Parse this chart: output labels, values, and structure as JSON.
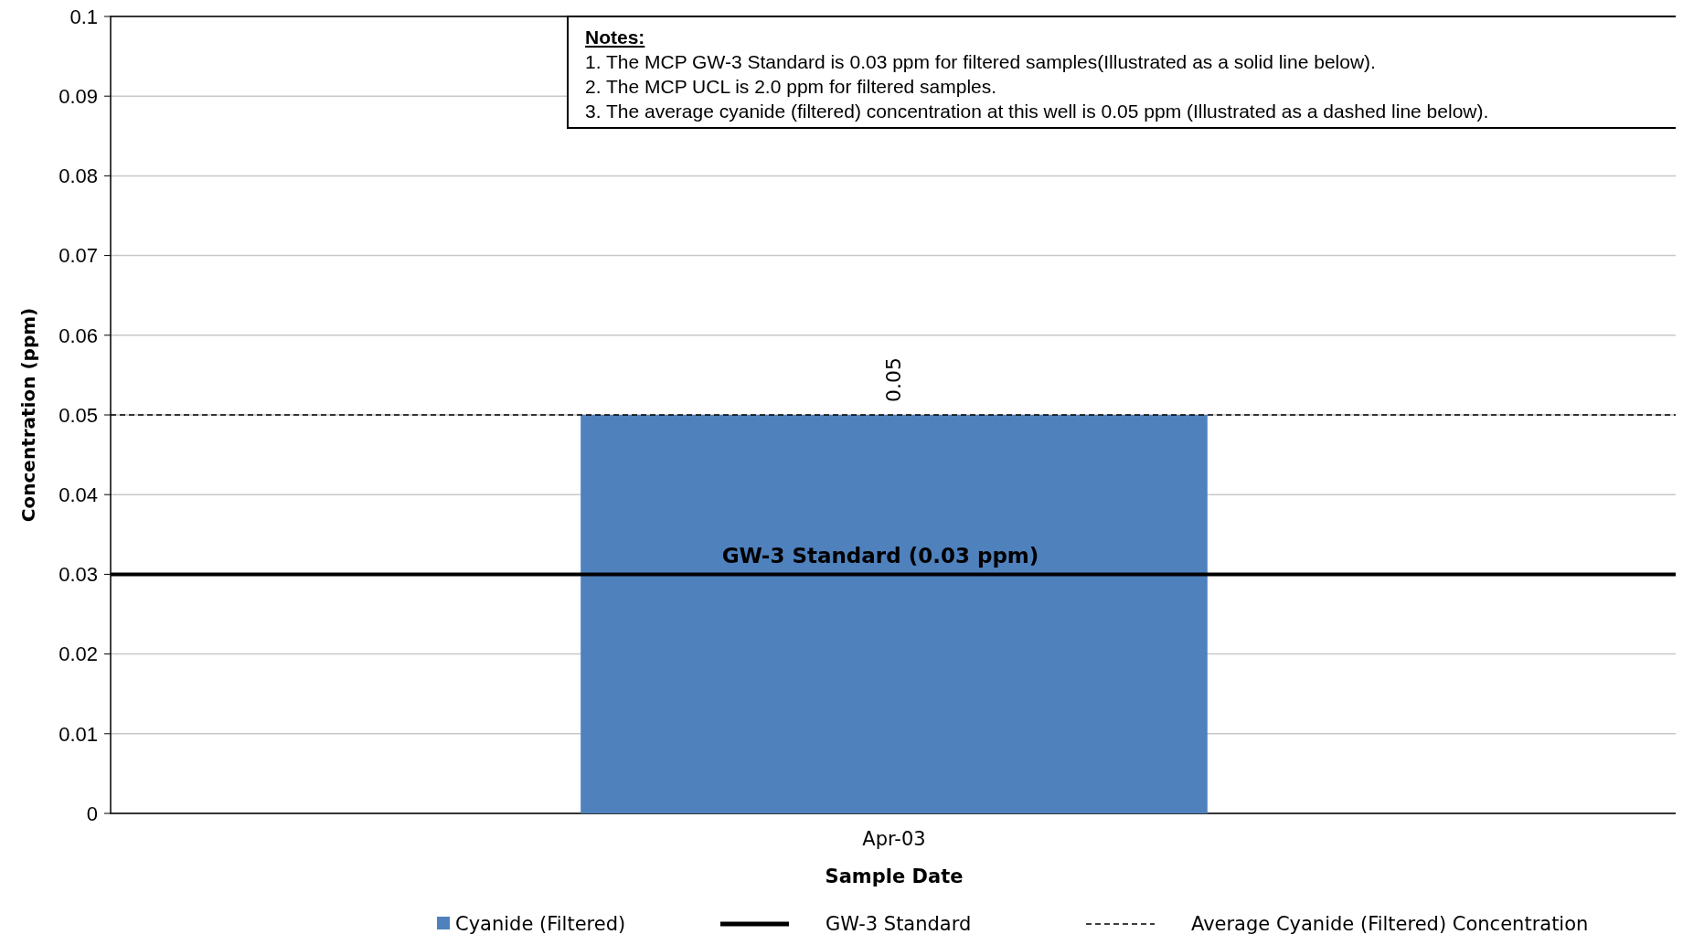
{
  "chart_data": {
    "type": "bar",
    "xlabel": "Sample Date",
    "ylabel": "Concentration (ppm)",
    "categories": [
      "Apr-03"
    ],
    "series": [
      {
        "name": "Cyanide (Filtered)",
        "color": "#4f81bd",
        "values": [
          0.05
        ]
      }
    ],
    "data_labels": true,
    "ylim": [
      0,
      0.1
    ],
    "yticks": [
      0,
      0.01,
      0.02,
      0.03,
      0.04,
      0.05,
      0.06,
      0.07,
      0.08,
      0.09,
      0.1
    ],
    "grid": "y",
    "ref_lines": [
      {
        "axis": "y",
        "value": 0.03,
        "label": "GW-3 Standard",
        "color": "#000000",
        "line_style": "solid"
      },
      {
        "axis": "y",
        "value": 0.05,
        "label": "Average Cyanide (Filtered) Concentration",
        "color": "#000000",
        "line_style": "dashed"
      }
    ],
    "annotations": [
      {
        "text": "GW-3 Standard (0.03 ppm)",
        "y": 0.03
      },
      "Notes:",
      "1.  The MCP GW-3 Standard is 0.03 ppm for filtered samples(Illustrated as a solid line below).",
      "2.  The MCP UCL is 2.0 ppm for filtered samples.",
      "3.  The average cyanide (filtered) concentration at this well is 0.05 ppm (Illustrated as a dashed line below)."
    ],
    "legend": "bottom"
  }
}
